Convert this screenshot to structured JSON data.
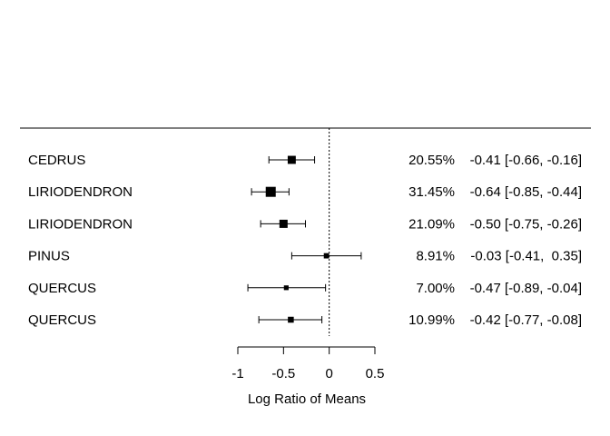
{
  "chart_data": {
    "type": "forest",
    "title": "",
    "xlabel": "Log Ratio of Means",
    "xlim": [
      -1,
      0.5
    ],
    "xticks": [
      -1,
      -0.5,
      0,
      0.5
    ],
    "xtick_labels": [
      "-1",
      "-0.5",
      "0",
      "0.5"
    ],
    "reference_line": 0,
    "studies": [
      {
        "label": "CEDRUS",
        "estimate": -0.41,
        "ci": [
          -0.66,
          -0.16
        ],
        "weight": 20.55,
        "weight_text": "20.55%",
        "ci_text": "-0.41 [-0.66, -0.16]"
      },
      {
        "label": "LIRIODENDRON",
        "estimate": -0.64,
        "ci": [
          -0.85,
          -0.44
        ],
        "weight": 31.45,
        "weight_text": "31.45%",
        "ci_text": "-0.64 [-0.85, -0.44]"
      },
      {
        "label": "LIRIODENDRON",
        "estimate": -0.5,
        "ci": [
          -0.75,
          -0.26
        ],
        "weight": 21.09,
        "weight_text": "21.09%",
        "ci_text": "-0.50 [-0.75, -0.26]"
      },
      {
        "label": "PINUS",
        "estimate": -0.03,
        "ci": [
          -0.41,
          0.35
        ],
        "weight": 8.91,
        "weight_text": "8.91%",
        "ci_text": "-0.03 [-0.41,  0.35]"
      },
      {
        "label": "QUERCUS",
        "estimate": -0.47,
        "ci": [
          -0.89,
          -0.04
        ],
        "weight": 7.0,
        "weight_text": "7.00%",
        "ci_text": "-0.47 [-0.89, -0.04]"
      },
      {
        "label": "QUERCUS",
        "estimate": -0.42,
        "ci": [
          -0.77,
          -0.08
        ],
        "weight": 10.99,
        "weight_text": "10.99%",
        "ci_text": "-0.42 [-0.77, -0.08]"
      }
    ]
  }
}
